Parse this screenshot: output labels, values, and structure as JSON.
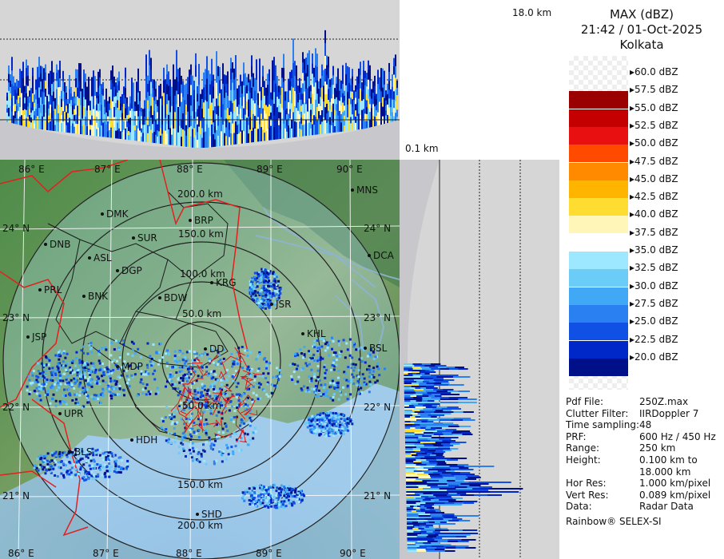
{
  "sidebar": {
    "title": "MAX (dBZ)",
    "datetime": "21:42 / 01-Oct-2025",
    "station": "Kolkata",
    "legend": [
      {
        "label": "60.0 dBZ",
        "color": ""
      },
      {
        "label": "57.5 dBZ",
        "color": "#9a0000"
      },
      {
        "label": "55.0 dBZ",
        "color": "#c40000"
      },
      {
        "label": "52.5 dBZ",
        "color": "#e81010"
      },
      {
        "label": "50.0 dBZ",
        "color": "#ff4a00"
      },
      {
        "label": "47.5 dBZ",
        "color": "#ff8a00"
      },
      {
        "label": "45.0 dBZ",
        "color": "#ffb400"
      },
      {
        "label": "42.5 dBZ",
        "color": "#ffdc30"
      },
      {
        "label": "40.0 dBZ",
        "color": "#fff6b8"
      },
      {
        "label": "37.5 dBZ",
        "color": "#ffffff"
      },
      {
        "label": "35.0 dBZ",
        "color": "#9ee8ff"
      },
      {
        "label": "32.5 dBZ",
        "color": "#6cccf8"
      },
      {
        "label": "30.0 dBZ",
        "color": "#40a8f4"
      },
      {
        "label": "27.5 dBZ",
        "color": "#2a80f0"
      },
      {
        "label": "25.0 dBZ",
        "color": "#1050e4"
      },
      {
        "label": "22.5 dBZ",
        "color": "#0028c8"
      },
      {
        "label": "20.0 dBZ",
        "color": "#001088"
      }
    ],
    "info": [
      {
        "key": "Pdf File:",
        "value": "250Z.max"
      },
      {
        "key": "Clutter Filter:",
        "value": "IIRDoppler 7"
      },
      {
        "key": "Time sampling:",
        "value": "48"
      },
      {
        "key": "PRF:",
        "value": "600 Hz / 450 Hz"
      },
      {
        "key": "Range:",
        "value": "250 km"
      },
      {
        "key": "Height:",
        "value": "0.100 km to"
      },
      {
        "key": "",
        "value": "18.000 km"
      },
      {
        "key": "Hor Res:",
        "value": "1.000 km/pixel"
      },
      {
        "key": "Vert Res:",
        "value": "0.089 km/pixel"
      },
      {
        "key": "Data:",
        "value": "Radar Data"
      }
    ],
    "footer": "Rainbow® SELEX-SI"
  },
  "corner": {
    "top_height": "18.0 km",
    "bottom_height": "0.1 km"
  },
  "map": {
    "lon_labels": [
      "86° E",
      "87° E",
      "88° E",
      "89° E",
      "90° E"
    ],
    "lat_labels": [
      "24° N",
      "23° N",
      "22° N",
      "21° N"
    ],
    "range_labels": [
      "200.0 km",
      "150.0 km",
      "100.0 km",
      "50.0 km",
      "50.0 km",
      "150.0 km",
      "200.0 km"
    ],
    "places": [
      "DMK",
      "BRP",
      "DNB",
      "SUR",
      "ASL",
      "DGP",
      "PRL",
      "BNK",
      "BDW",
      "KRG",
      "JSP",
      "MDP",
      "JSR",
      "KHL",
      "BSL",
      "DD",
      "MNS",
      "DCA",
      "BLS",
      "SHD",
      "HDH",
      "UPR"
    ]
  }
}
